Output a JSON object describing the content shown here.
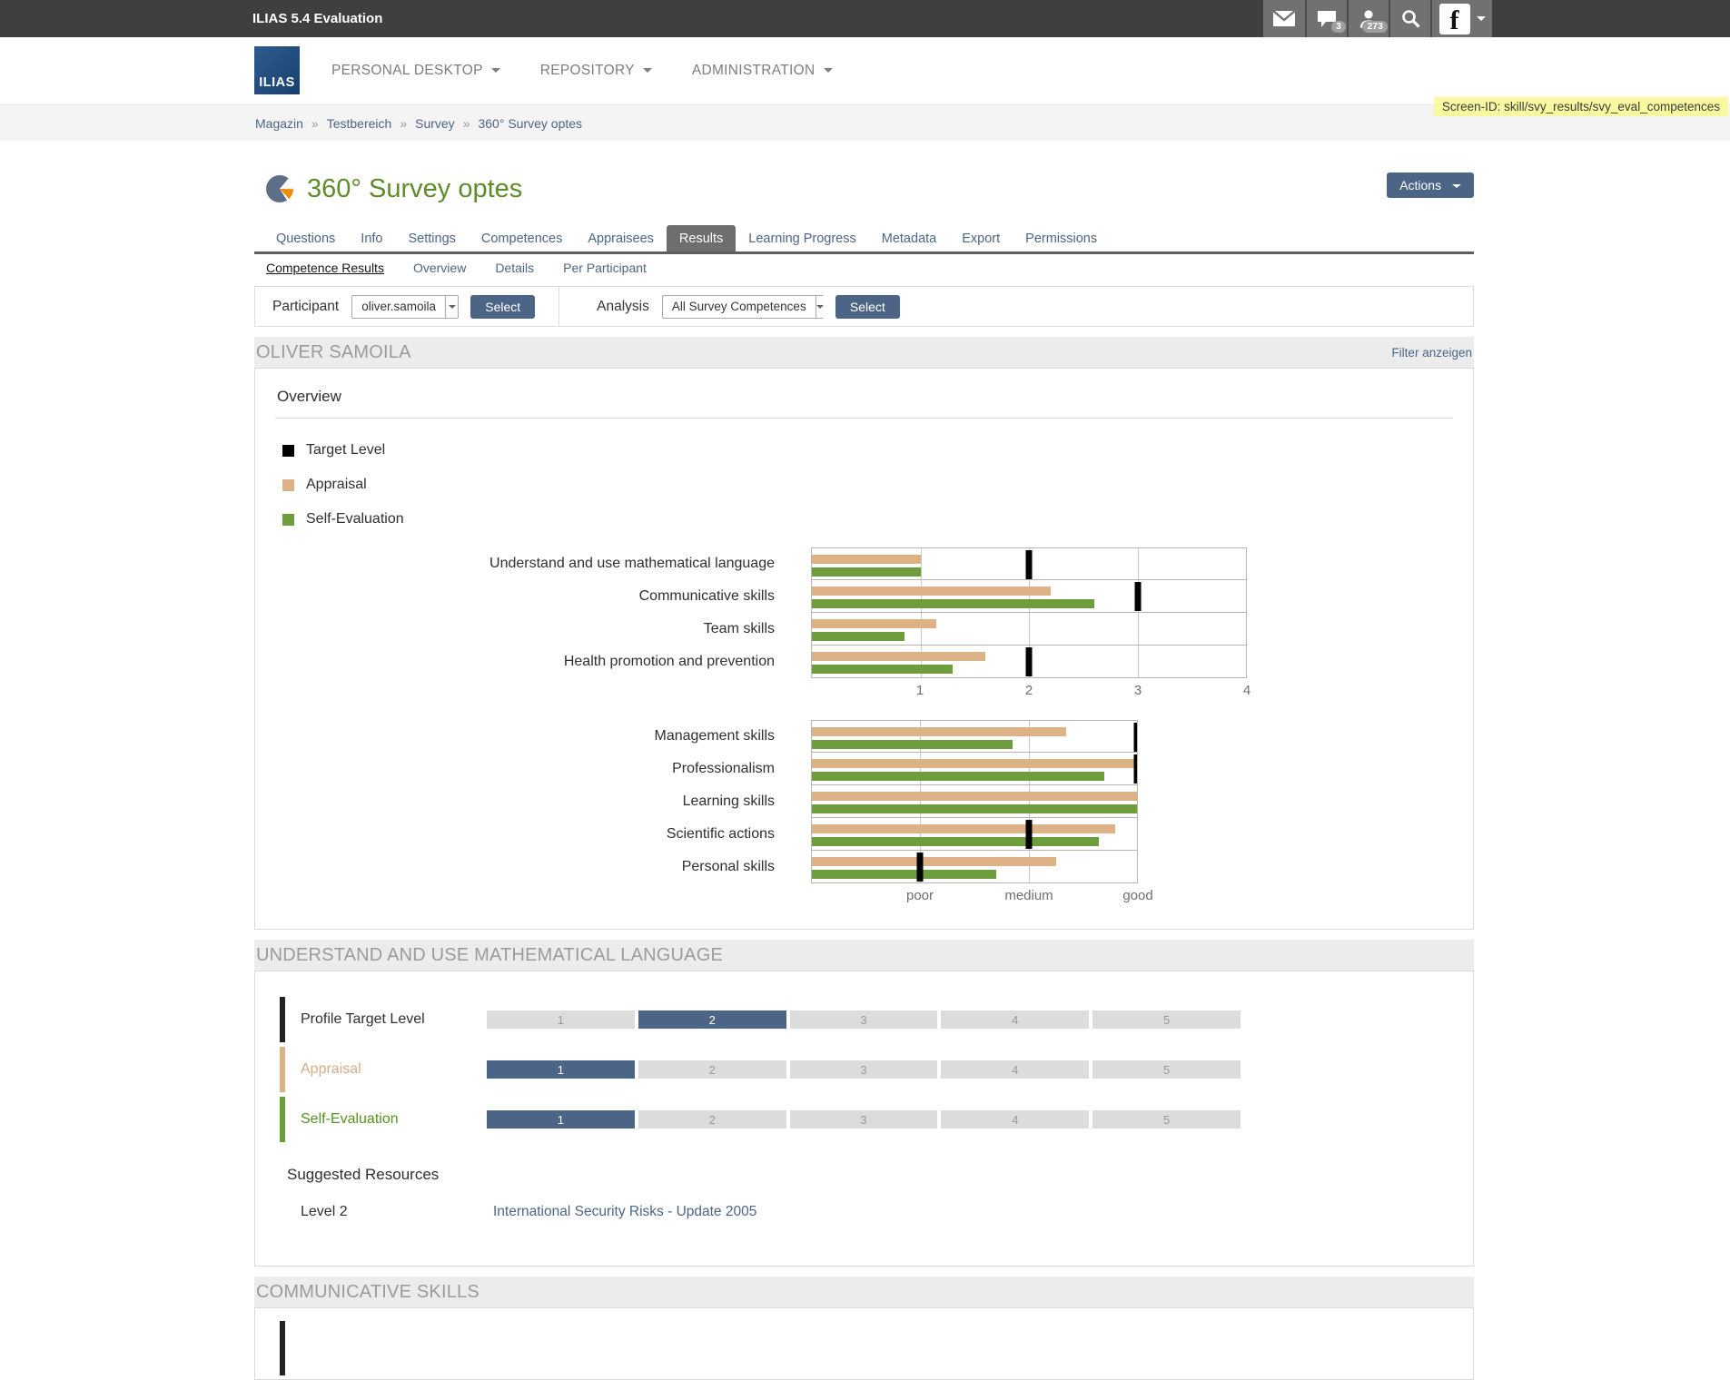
{
  "topbar": {
    "title": "ILIAS 5.4 Evaluation",
    "chat_badge": "3",
    "users_badge": "273",
    "avatar_letter": "f"
  },
  "nav": {
    "logo": "ILIAS",
    "items": [
      {
        "label": "PERSONAL DESKTOP"
      },
      {
        "label": "REPOSITORY"
      },
      {
        "label": "ADMINISTRATION"
      }
    ]
  },
  "breadcrumb": {
    "separator": "»",
    "items": [
      "Magazin",
      "Testbereich",
      "Survey",
      "360° Survey optes"
    ]
  },
  "screen_id": "Screen-ID: skill/svy_results/svy_eval_competences",
  "page": {
    "title": "360° Survey optes",
    "actions_label": "Actions"
  },
  "tabs": {
    "active": "Results",
    "items": [
      "Questions",
      "Info",
      "Settings",
      "Competences",
      "Appraisees",
      "Results",
      "Learning Progress",
      "Metadata",
      "Export",
      "Permissions"
    ]
  },
  "subtabs": {
    "active": "Competence Results",
    "items": [
      "Competence Results",
      "Overview",
      "Details",
      "Per Participant"
    ]
  },
  "toolbar": {
    "participant_label": "Participant",
    "participant_value": "oliver.samoila",
    "analysis_label": "Analysis",
    "analysis_value": "All Survey Competences",
    "select_label": "Select"
  },
  "person_section": {
    "heading": "OLIVER SAMOILA",
    "filter_link": "Filter anzeigen",
    "panel_title": "Overview"
  },
  "legend": [
    {
      "label": "Target Level",
      "color": "#000000"
    },
    {
      "label": "Appraisal",
      "color": "#ddb287"
    },
    {
      "label": "Self-Evaluation",
      "color": "#6d9d3d"
    }
  ],
  "chart_data": [
    {
      "type": "bar",
      "orientation": "horizontal",
      "categories": [
        "Understand and use mathematical language",
        "Communicative skills",
        "Team skills",
        "Health promotion and prevention"
      ],
      "series": [
        {
          "name": "Appraisal",
          "color": "#ddb287",
          "values": [
            1.0,
            2.2,
            1.15,
            1.6
          ]
        },
        {
          "name": "Self-Evaluation",
          "color": "#6d9d3d",
          "values": [
            1.0,
            2.6,
            0.85,
            1.3
          ]
        },
        {
          "name": "Target Level",
          "color": "#000000",
          "marker": true,
          "values": [
            2,
            3,
            null,
            2
          ]
        }
      ],
      "xlim": [
        0,
        4
      ],
      "ticks": [
        {
          "value": 1,
          "label": "1"
        },
        {
          "value": 2,
          "label": "2"
        },
        {
          "value": 3,
          "label": "3"
        },
        {
          "value": 4,
          "label": "4"
        }
      ],
      "grid": true,
      "legend_position": "top-left"
    },
    {
      "type": "bar",
      "orientation": "horizontal",
      "categories": [
        "Management skills",
        "Professionalism",
        "Learning skills",
        "Scientific actions",
        "Personal skills"
      ],
      "series": [
        {
          "name": "Appraisal",
          "color": "#ddb287",
          "values": [
            2.35,
            3.0,
            3.0,
            2.8,
            2.25
          ]
        },
        {
          "name": "Self-Evaluation",
          "color": "#6d9d3d",
          "values": [
            1.85,
            2.7,
            3.0,
            2.65,
            1.7
          ]
        },
        {
          "name": "Target Level",
          "color": "#000000",
          "marker": true,
          "values": [
            3,
            3,
            null,
            2,
            1
          ]
        }
      ],
      "xlim": [
        0,
        3
      ],
      "ticks": [
        {
          "value": 1,
          "label": "poor"
        },
        {
          "value": 2,
          "label": "medium"
        },
        {
          "value": 3,
          "label": "good"
        }
      ],
      "grid": true,
      "legend_position": "top-left"
    }
  ],
  "competence_detail": {
    "heading": "UNDERSTAND AND USE MATHEMATICAL LANGUAGE",
    "scale": [
      1,
      2,
      3,
      4,
      5
    ],
    "selected_color": "#4c6586",
    "rows": [
      {
        "label": "Profile Target Level",
        "bar_color": "#222222",
        "label_color": "#2f2f2f",
        "selected": 2
      },
      {
        "label": "Appraisal",
        "bar_color": "#ddb287",
        "label_color": "#d8ab84",
        "selected": 1
      },
      {
        "label": "Self-Evaluation",
        "bar_color": "#6d9d3d",
        "label_color": "#56931f",
        "selected": 1
      }
    ],
    "resources_title": "Suggested Resources",
    "resources": [
      {
        "level": "Level 2",
        "link": "International Security Risks - Update 2005"
      }
    ]
  },
  "next_section": {
    "heading": "COMMUNICATIVE SKILLS"
  }
}
